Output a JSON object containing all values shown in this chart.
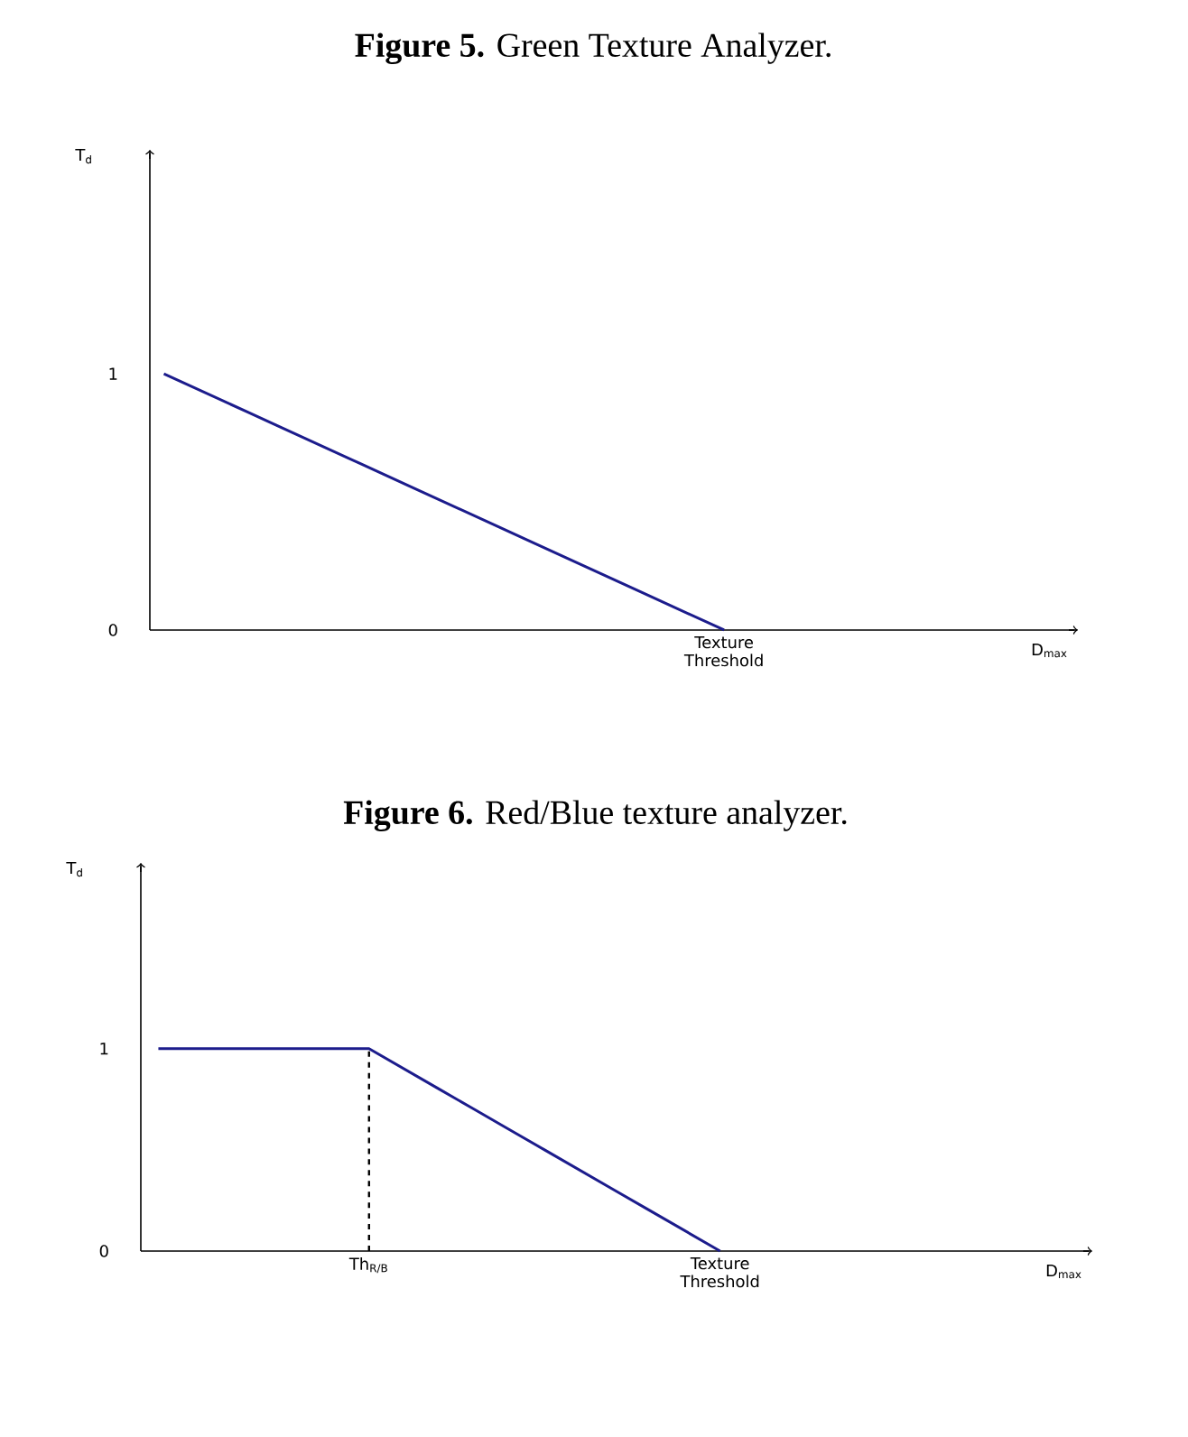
{
  "chart_data": [
    {
      "type": "line",
      "title": "**Figure 5.** Green Texture Analyzer.",
      "xlabel": "D$_{max}$",
      "ylabel": "T$_{d}$",
      "categories": [
        null,
        null,
        null,
        null,
        null,
        null,
        null,
        null,
        null,
        null,
        null,
        null,
        null,
        null,
        null,
        null,
        null,
        null,
        null,
        null,
        "Texture Threshold",
        null,
        null,
        null,
        null,
        null,
        null,
        null,
        null,
        null,
        null,
        null,
        null
      ],
      "ylim": [
        0,
        1.86
      ],
      "yticks": [
        0,
        1
      ],
      "series": [
        {
          "color": "#1c1c8c",
          "values": [
            1,
            0.95,
            0.9,
            0.85,
            0.8,
            0.75,
            0.7,
            0.65,
            0.6,
            0.55,
            0.5,
            0.45,
            0.4,
            0.35,
            0.3,
            0.25,
            0.2,
            0.15,
            0.1,
            0.05,
            0,
            null,
            null,
            null,
            null,
            null,
            null,
            null,
            null,
            null,
            null,
            null,
            null
          ],
          "line_style": "solid"
        }
      ]
    },
    {
      "type": "line",
      "title": "**Figure 6.** Red/Blue texture analyzer.",
      "xlabel": "D$_{max}$",
      "ylabel": "T$_{d}$",
      "categories": [
        null,
        null,
        null,
        null,
        null,
        null,
        "Th$_{R/B}$",
        null,
        null,
        null,
        null,
        null,
        null,
        null,
        null,
        null,
        "Texture Threshold",
        null,
        null,
        null,
        null,
        null,
        null,
        null,
        null,
        null,
        null
      ],
      "ylim": [
        0,
        1.9
      ],
      "yticks": [
        0,
        1
      ],
      "series": [
        {
          "color": "#1c1c8c",
          "values": [
            1,
            1,
            1,
            1,
            1,
            1,
            1,
            0.9,
            0.8,
            0.7,
            0.6,
            0.5,
            0.4,
            0.3,
            0.2,
            0.1,
            0,
            null,
            null,
            null,
            null,
            null,
            null,
            null,
            null,
            null,
            null
          ],
          "line_style": "solid"
        },
        {
          "color": "#000000",
          "x": [
            "Th$_{R/B}$",
            "Th$_{R/B}$"
          ],
          "values": [
            0,
            1
          ],
          "line_style": "dashed"
        }
      ]
    }
  ]
}
